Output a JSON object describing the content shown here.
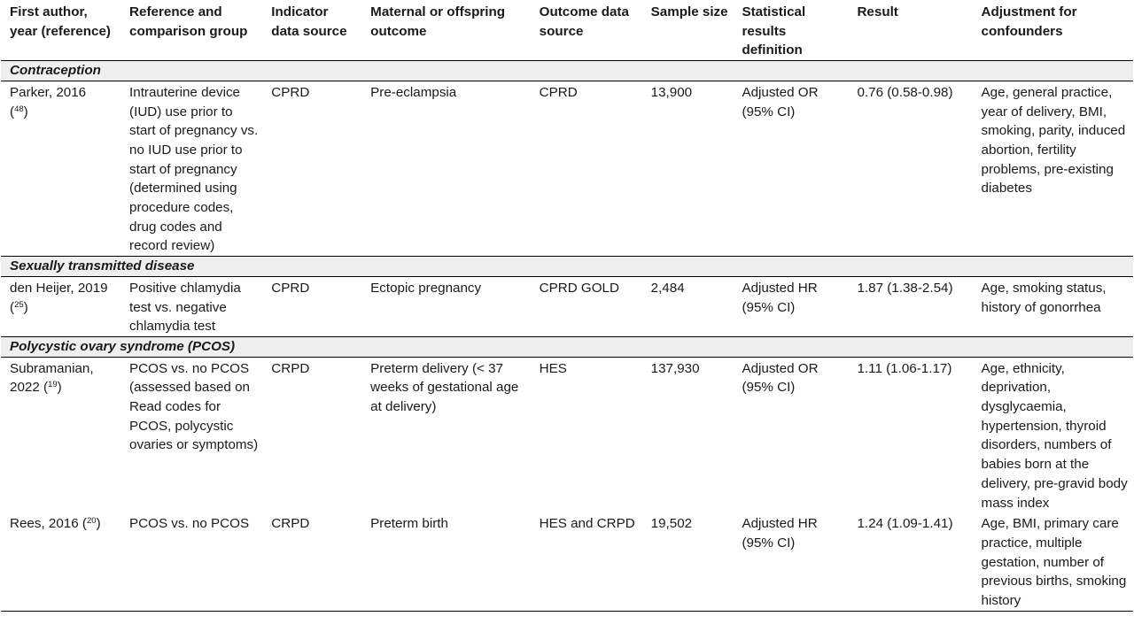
{
  "headers": [
    "First author, year (reference)",
    "Reference and comparison group",
    "Indicator data source",
    "Maternal or offspring outcome",
    "Outcome data source",
    "Sample size",
    "Statistical results definition",
    "Result",
    "Adjustment for confounders"
  ],
  "sections": [
    {
      "title": "Contraception",
      "rows": [
        {
          "author": "Parker, 2016",
          "ref_open": "(",
          "ref_num": "48",
          "ref_close": ")",
          "comparison": "Intrauterine device (IUD) use prior to start of pregnancy vs. no IUD use prior to start of pregnancy (determined using procedure codes, drug codes and record review)",
          "indicator_source": "CPRD",
          "outcome": "Pre-eclampsia",
          "outcome_source": "CPRD",
          "sample_size": "13,900",
          "definition": "Adjusted OR (95% CI)",
          "result": "0.76 (0.58-0.98)",
          "adjustment": "Age, general practice, year of delivery, BMI, smoking, parity, induced abortion, fertility problems, pre-existing diabetes"
        }
      ]
    },
    {
      "title": "Sexually transmitted disease",
      "rows": [
        {
          "author": "den Heijer, 2019",
          "ref_open": "(",
          "ref_num": "25",
          "ref_close": ")",
          "comparison": "Positive chlamydia test vs. negative chlamydia test",
          "indicator_source": "CPRD",
          "outcome": "Ectopic pregnancy",
          "outcome_source": "CPRD GOLD",
          "sample_size": "2,484",
          "definition": "Adjusted HR (95% CI)",
          "result": "1.87 (1.38-2.54)",
          "adjustment": "Age, smoking status, history of gonorrhea"
        }
      ]
    },
    {
      "title": "Polycystic ovary syndrome (PCOS)",
      "rows": [
        {
          "author": "Subramanian, 2022",
          "ref_open": "(",
          "ref_num": "19",
          "ref_close": ")",
          "comparison": "PCOS vs. no PCOS (assessed based on Read codes for PCOS, polycystic ovaries or symptoms)",
          "indicator_source": "CRPD",
          "outcome": "Preterm delivery (< 37 weeks of gestational age at delivery)",
          "outcome_source": "HES",
          "sample_size": "137,930",
          "definition": "Adjusted OR (95% CI)",
          "result": "1.11 (1.06-1.17)",
          "adjustment": "Age, ethnicity, deprivation, dysglycaemia, hypertension, thyroid disorders, numbers of babies born at the delivery, pre-gravid body mass index"
        },
        {
          "author": "Rees, 2016",
          "ref_open": "(",
          "ref_num": "20",
          "ref_close": ")",
          "comparison": "PCOS vs. no PCOS",
          "indicator_source": "CRPD",
          "outcome": "Preterm birth",
          "outcome_source": "HES and CRPD",
          "sample_size": "19,502",
          "definition": "Adjusted HR (95% CI)",
          "result": "1.24 (1.09-1.41)",
          "adjustment": "Age, BMI, primary care practice, multiple gestation, number of previous births, smoking history"
        }
      ]
    }
  ]
}
